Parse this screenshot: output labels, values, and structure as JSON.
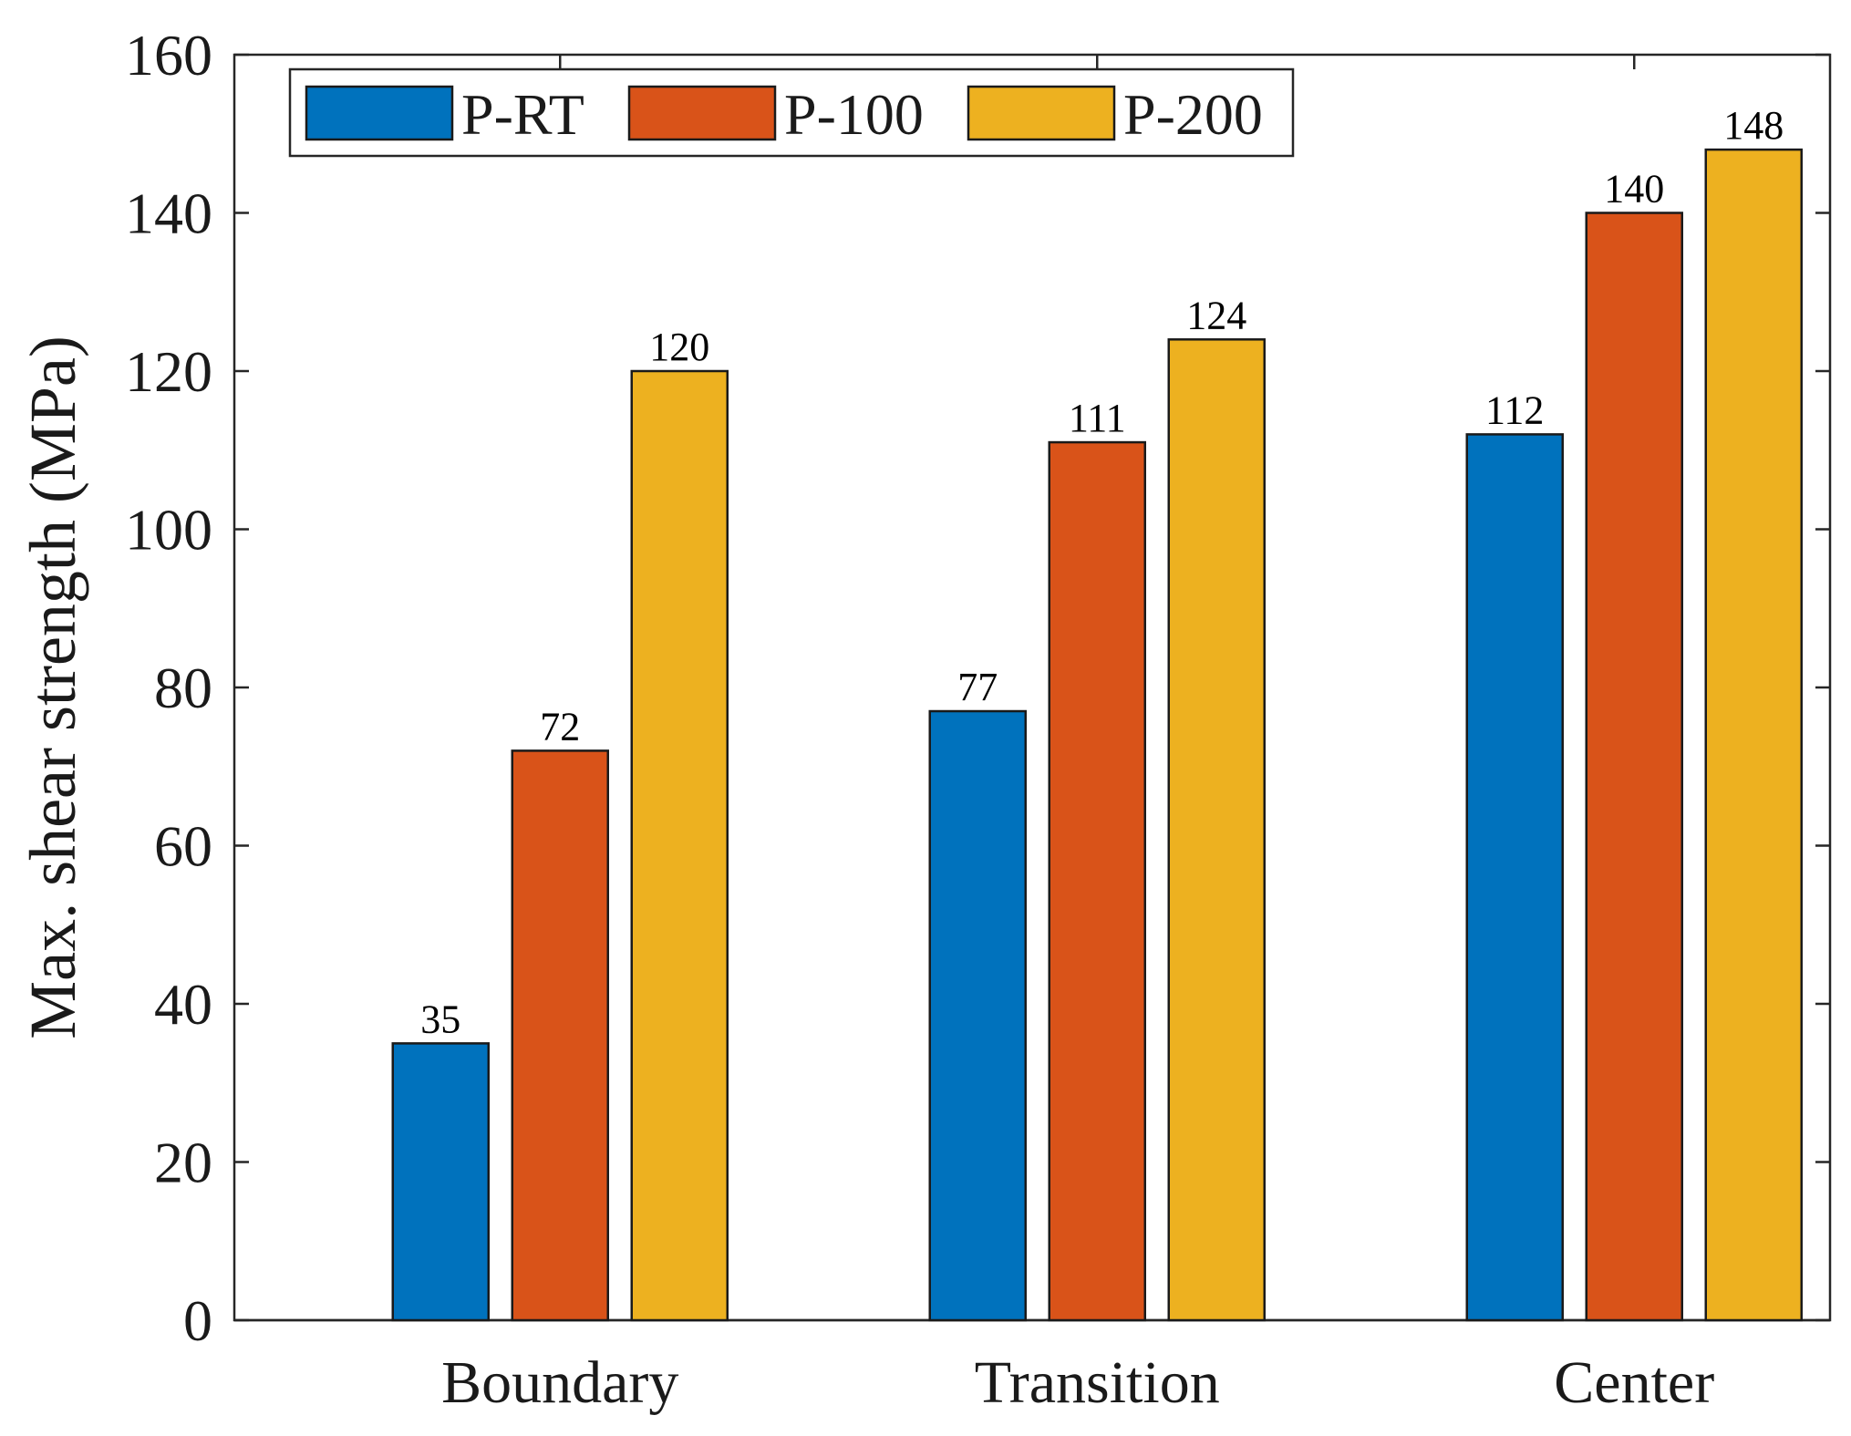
{
  "chart_data": {
    "type": "bar",
    "title": "",
    "xlabel": "",
    "ylabel": "Max. shear strength (MPa)",
    "ylim": [
      0,
      160
    ],
    "yticks": [
      0,
      20,
      40,
      60,
      80,
      100,
      120,
      140,
      160
    ],
    "categories": [
      "Boundary",
      "Transition",
      "Center"
    ],
    "series": [
      {
        "name": "P-RT",
        "color": "#0072BD",
        "values": [
          35,
          77,
          112
        ]
      },
      {
        "name": "P-100",
        "color": "#D95319",
        "values": [
          72,
          111,
          140
        ]
      },
      {
        "name": "P-200",
        "color": "#EDB120",
        "values": [
          120,
          124,
          148
        ]
      }
    ],
    "legend": {
      "position": "top-left",
      "orientation": "horizontal"
    },
    "grid": false,
    "data_labels": true
  }
}
